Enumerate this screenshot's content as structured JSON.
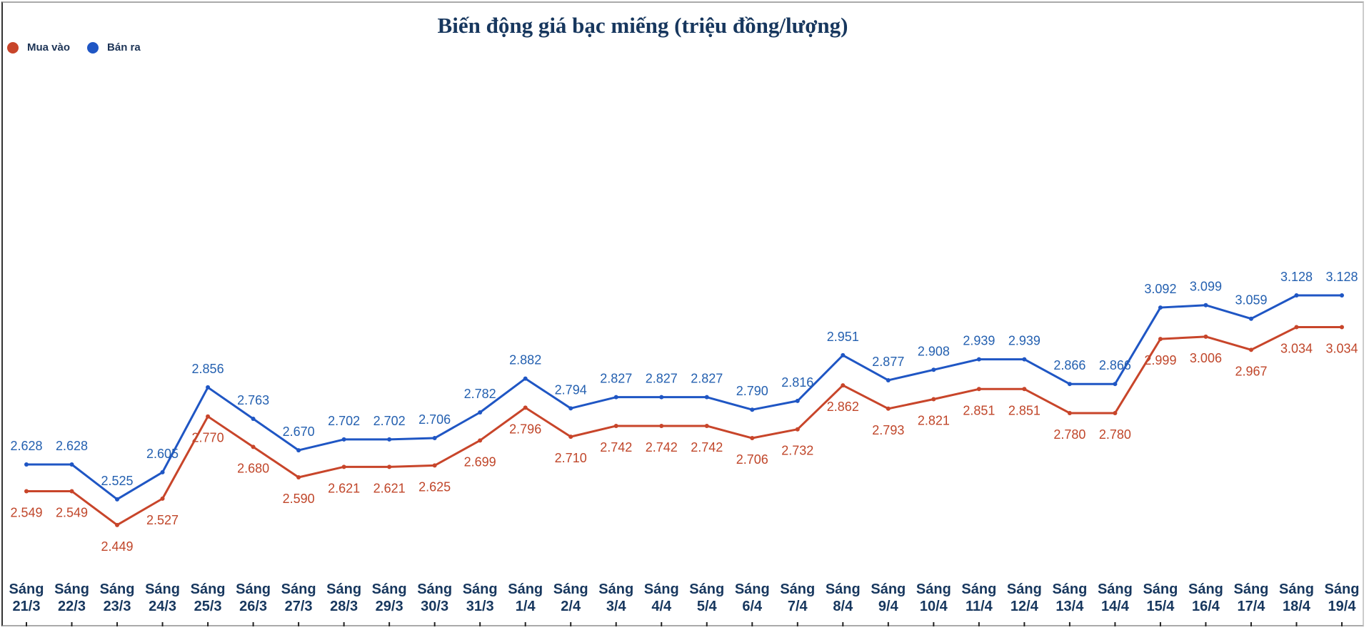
{
  "chart_data": {
    "type": "line",
    "title": "Biến động giá bạc miếng (triệu đồng/lượng)",
    "xlabel": "",
    "ylabel": "",
    "legend_position": "top-left",
    "categories": [
      [
        "Sáng",
        "21/3"
      ],
      [
        "Sáng",
        "22/3"
      ],
      [
        "Sáng",
        "23/3"
      ],
      [
        "Sáng",
        "24/3"
      ],
      [
        "Sáng",
        "25/3"
      ],
      [
        "Sáng",
        "26/3"
      ],
      [
        "Sáng",
        "27/3"
      ],
      [
        "Sáng",
        "28/3"
      ],
      [
        "Sáng",
        "29/3"
      ],
      [
        "Sáng",
        "30/3"
      ],
      [
        "Sáng",
        "31/3"
      ],
      [
        "Sáng",
        "1/4"
      ],
      [
        "Sáng",
        "2/4"
      ],
      [
        "Sáng",
        "3/4"
      ],
      [
        "Sáng",
        "4/4"
      ],
      [
        "Sáng",
        "5/4"
      ],
      [
        "Sáng",
        "6/4"
      ],
      [
        "Sáng",
        "7/4"
      ],
      [
        "Sáng",
        "8/4"
      ],
      [
        "Sáng",
        "9/4"
      ],
      [
        "Sáng",
        "10/4"
      ],
      [
        "Sáng",
        "11/4"
      ],
      [
        "Sáng",
        "12/4"
      ],
      [
        "Sáng",
        "13/4"
      ],
      [
        "Sáng",
        "14/4"
      ],
      [
        "Sáng",
        "15/4"
      ],
      [
        "Sáng",
        "16/4"
      ],
      [
        "Sáng",
        "17/4"
      ],
      [
        "Sáng",
        "18/4"
      ],
      [
        "Sáng",
        "19/4"
      ]
    ],
    "series": [
      {
        "name": "Mua vào",
        "color": "#c8452a",
        "label_color": "#c0462a",
        "values": [
          2.549,
          2.549,
          2.449,
          2.527,
          2.77,
          2.68,
          2.59,
          2.621,
          2.621,
          2.625,
          2.699,
          2.796,
          2.71,
          2.742,
          2.742,
          2.742,
          2.706,
          2.732,
          2.862,
          2.793,
          2.821,
          2.851,
          2.851,
          2.78,
          2.78,
          2.999,
          3.006,
          2.967,
          3.034,
          3.034
        ],
        "labels": [
          "2.549",
          "2.549",
          "2.449",
          "2.527",
          "2.770",
          "2.680",
          "2.590",
          "2.621",
          "2.621",
          "2.625",
          "2.699",
          "2.796",
          "2.710",
          "2.742",
          "2.742",
          "2.742",
          "2.706",
          "2.732",
          "2.862",
          "2.793",
          "2.821",
          "2.851",
          "2.851",
          "2.780",
          "2.780",
          "2.999",
          "3.006",
          "2.967",
          "3.034",
          "3.034"
        ]
      },
      {
        "name": "Bán ra",
        "color": "#1f56c4",
        "label_color": "#2460b0",
        "values": [
          2.628,
          2.628,
          2.525,
          2.605,
          2.856,
          2.763,
          2.67,
          2.702,
          2.702,
          2.706,
          2.782,
          2.882,
          2.794,
          2.827,
          2.827,
          2.827,
          2.79,
          2.816,
          2.951,
          2.877,
          2.908,
          2.939,
          2.939,
          2.866,
          2.866,
          3.092,
          3.099,
          3.059,
          3.128,
          3.128
        ],
        "labels": [
          "2.628",
          "2.628",
          "2.525",
          "2.605",
          "2.856",
          "2.763",
          "2.670",
          "2.702",
          "2.702",
          "2.706",
          "2.782",
          "2.882",
          "2.794",
          "2.827",
          "2.827",
          "2.827",
          "2.790",
          "2.816",
          "2.951",
          "2.877",
          "2.908",
          "2.939",
          "2.939",
          "2.866",
          "2.866",
          "3.092",
          "3.099",
          "3.059",
          "3.128",
          "3.128"
        ]
      }
    ]
  }
}
